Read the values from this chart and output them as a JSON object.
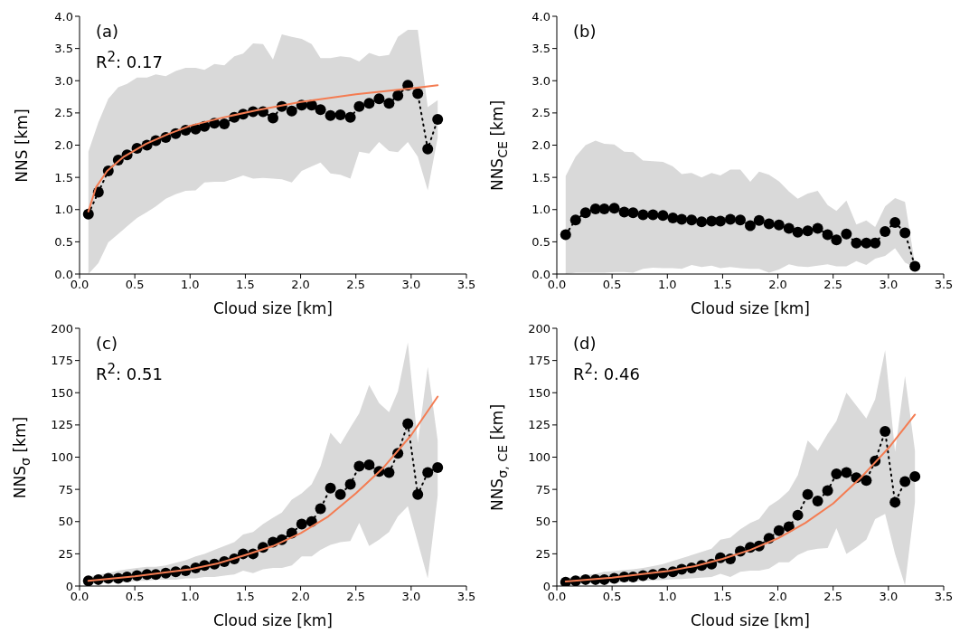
{
  "chart_data": [
    {
      "type": "line",
      "xlabel": "Cloud size [km]",
      "ylabel": "NNS [km]",
      "annotations": [
        "(a)",
        "R$^{2}$: 0.17"
      ],
      "xlim": [
        0,
        3.5
      ],
      "xticks": [
        {
          "value": 0,
          "label": "0.0"
        },
        {
          "value": 0.5,
          "label": "0.5"
        },
        {
          "value": 1,
          "label": "1.0"
        },
        {
          "value": 1.5,
          "label": "1.5"
        },
        {
          "value": 2,
          "label": "2.0"
        },
        {
          "value": 2.5,
          "label": "2.5"
        },
        {
          "value": 3,
          "label": "3.0"
        },
        {
          "value": 3.5,
          "label": "3.5"
        }
      ],
      "ylim": [
        0,
        4
      ],
      "yticks": [
        {
          "value": 0,
          "label": "0.0"
        },
        {
          "value": 0.5,
          "label": "0.5"
        },
        {
          "value": 1,
          "label": "1.0"
        },
        {
          "value": 1.5,
          "label": "1.5"
        },
        {
          "value": 2,
          "label": "2.0"
        },
        {
          "value": 2.5,
          "label": "2.5"
        },
        {
          "value": 3,
          "label": "3.0"
        },
        {
          "value": 3.5,
          "label": "3.5"
        },
        {
          "value": 4,
          "label": "4.0"
        }
      ],
      "x": [
        0.08,
        0.17,
        0.26,
        0.35,
        0.43,
        0.52,
        0.61,
        0.69,
        0.78,
        0.87,
        0.96,
        1.05,
        1.13,
        1.22,
        1.31,
        1.4,
        1.48,
        1.57,
        1.66,
        1.75,
        1.83,
        1.92,
        2.01,
        2.1,
        2.18,
        2.27,
        2.36,
        2.45,
        2.53,
        2.62,
        2.71,
        2.8,
        2.88,
        2.97,
        3.06,
        3.15,
        3.24
      ],
      "series": [
        {
          "color": "#000000",
          "marker": "circle",
          "line_style": "dotted",
          "values": [
            0.93,
            1.27,
            1.6,
            1.77,
            1.85,
            1.95,
            2.0,
            2.07,
            2.12,
            2.18,
            2.23,
            2.25,
            2.29,
            2.34,
            2.33,
            2.43,
            2.48,
            2.52,
            2.52,
            2.42,
            2.6,
            2.53,
            2.62,
            2.62,
            2.55,
            2.46,
            2.47,
            2.43,
            2.6,
            2.65,
            2.72,
            2.65,
            2.77,
            2.93,
            2.8,
            1.94,
            2.4
          ],
          "lower": [
            0.0,
            0.17,
            0.49,
            0.62,
            0.74,
            0.87,
            0.96,
            1.05,
            1.17,
            1.24,
            1.29,
            1.3,
            1.42,
            1.43,
            1.43,
            1.48,
            1.53,
            1.48,
            1.49,
            1.48,
            1.47,
            1.42,
            1.6,
            1.67,
            1.73,
            1.56,
            1.54,
            1.48,
            1.9,
            1.87,
            2.05,
            1.91,
            1.89,
            2.05,
            1.82,
            1.3,
            2.12
          ],
          "upper": [
            1.9,
            2.35,
            2.72,
            2.9,
            2.95,
            3.05,
            3.05,
            3.1,
            3.07,
            3.15,
            3.2,
            3.2,
            3.17,
            3.26,
            3.24,
            3.38,
            3.42,
            3.58,
            3.57,
            3.33,
            3.72,
            3.68,
            3.65,
            3.57,
            3.35,
            3.35,
            3.38,
            3.36,
            3.3,
            3.43,
            3.38,
            3.4,
            3.68,
            3.79,
            3.79,
            2.59,
            2.7
          ]
        },
        {
          "type": "line",
          "color": "#f47c52",
          "marker": "none",
          "line_style": "solid",
          "x": [
            0.08,
            0.15,
            0.25,
            0.4,
            0.6,
            0.8,
            1.0,
            1.3,
            1.6,
            2.0,
            2.5,
            3.0,
            3.24
          ],
          "values": [
            0.97,
            1.35,
            1.6,
            1.82,
            2.02,
            2.17,
            2.3,
            2.43,
            2.54,
            2.67,
            2.79,
            2.88,
            2.93
          ]
        }
      ]
    },
    {
      "type": "line",
      "xlabel": "Cloud size [km]",
      "ylabel": "NNS$_{CE}$ [km]",
      "annotations": [
        "(b)"
      ],
      "xlim": [
        0,
        3.5
      ],
      "xticks": [
        {
          "value": 0,
          "label": "0.0"
        },
        {
          "value": 0.5,
          "label": "0.5"
        },
        {
          "value": 1,
          "label": "1.0"
        },
        {
          "value": 1.5,
          "label": "1.5"
        },
        {
          "value": 2,
          "label": "2.0"
        },
        {
          "value": 2.5,
          "label": "2.5"
        },
        {
          "value": 3,
          "label": "3.0"
        },
        {
          "value": 3.5,
          "label": "3.5"
        }
      ],
      "ylim": [
        0,
        4
      ],
      "yticks": [
        {
          "value": 0,
          "label": "0.0"
        },
        {
          "value": 0.5,
          "label": "0.5"
        },
        {
          "value": 1,
          "label": "1.0"
        },
        {
          "value": 1.5,
          "label": "1.5"
        },
        {
          "value": 2,
          "label": "2.0"
        },
        {
          "value": 2.5,
          "label": "2.5"
        },
        {
          "value": 3,
          "label": "3.0"
        },
        {
          "value": 3.5,
          "label": "3.5"
        },
        {
          "value": 4,
          "label": "4.0"
        }
      ],
      "x": [
        0.08,
        0.17,
        0.26,
        0.35,
        0.43,
        0.52,
        0.61,
        0.69,
        0.78,
        0.87,
        0.96,
        1.05,
        1.13,
        1.22,
        1.31,
        1.4,
        1.48,
        1.57,
        1.66,
        1.75,
        1.83,
        1.92,
        2.01,
        2.1,
        2.18,
        2.27,
        2.36,
        2.45,
        2.53,
        2.62,
        2.71,
        2.8,
        2.88,
        2.97,
        3.06,
        3.15,
        3.24
      ],
      "series": [
        {
          "color": "#000000",
          "marker": "circle",
          "line_style": "dotted",
          "values": [
            0.61,
            0.84,
            0.95,
            1.01,
            1.01,
            1.02,
            0.96,
            0.95,
            0.92,
            0.92,
            0.91,
            0.87,
            0.85,
            0.84,
            0.81,
            0.82,
            0.82,
            0.85,
            0.84,
            0.75,
            0.83,
            0.78,
            0.76,
            0.71,
            0.65,
            0.67,
            0.71,
            0.61,
            0.53,
            0.62,
            0.48,
            0.48,
            0.48,
            0.66,
            0.8,
            0.64,
            0.12
          ],
          "lower": [
            0.0,
            0.02,
            0.02,
            0.02,
            0.02,
            0.03,
            0.03,
            0.02,
            0.08,
            0.1,
            0.09,
            0.09,
            0.08,
            0.14,
            0.11,
            0.13,
            0.09,
            0.11,
            0.09,
            0.08,
            0.08,
            0.02,
            0.07,
            0.15,
            0.12,
            0.11,
            0.13,
            0.15,
            0.12,
            0.12,
            0.2,
            0.14,
            0.24,
            0.28,
            0.4,
            0.18,
            0.1
          ],
          "upper": [
            1.52,
            1.82,
            2.0,
            2.07,
            2.02,
            2.01,
            1.9,
            1.89,
            1.76,
            1.75,
            1.74,
            1.67,
            1.55,
            1.57,
            1.5,
            1.57,
            1.53,
            1.62,
            1.62,
            1.43,
            1.59,
            1.54,
            1.44,
            1.28,
            1.17,
            1.25,
            1.29,
            1.07,
            0.98,
            1.14,
            0.77,
            0.83,
            0.73,
            1.05,
            1.18,
            1.12,
            0.15
          ]
        }
      ]
    },
    {
      "type": "line",
      "xlabel": "Cloud size [km]",
      "ylabel": "NNS$_{σ}$ [km]",
      "annotations": [
        "(c)",
        "R$^{2}$: 0.51"
      ],
      "xlim": [
        0,
        3.5
      ],
      "xticks": [
        {
          "value": 0,
          "label": "0.0"
        },
        {
          "value": 0.5,
          "label": "0.5"
        },
        {
          "value": 1,
          "label": "1.0"
        },
        {
          "value": 1.5,
          "label": "1.5"
        },
        {
          "value": 2,
          "label": "2.0"
        },
        {
          "value": 2.5,
          "label": "2.5"
        },
        {
          "value": 3,
          "label": "3.0"
        },
        {
          "value": 3.5,
          "label": "3.5"
        }
      ],
      "ylim": [
        0,
        200
      ],
      "yticks": [
        0,
        25,
        50,
        75,
        100,
        125,
        150,
        175,
        200
      ],
      "x": [
        0.08,
        0.17,
        0.26,
        0.35,
        0.43,
        0.52,
        0.61,
        0.69,
        0.78,
        0.87,
        0.96,
        1.05,
        1.13,
        1.22,
        1.31,
        1.4,
        1.48,
        1.57,
        1.66,
        1.75,
        1.83,
        1.92,
        2.01,
        2.1,
        2.18,
        2.27,
        2.36,
        2.45,
        2.53,
        2.62,
        2.71,
        2.8,
        2.88,
        2.97,
        3.06,
        3.15,
        3.24
      ],
      "series": [
        {
          "color": "#000000",
          "marker": "circle",
          "line_style": "dotted",
          "values": [
            4,
            5,
            6,
            6,
            7,
            8,
            9,
            9,
            10,
            11,
            12,
            14,
            16,
            17,
            19,
            21,
            25,
            25,
            30,
            34,
            36,
            41,
            48,
            50,
            60,
            76,
            71,
            79,
            93,
            94,
            89,
            88,
            103,
            126,
            71,
            88,
            92
          ],
          "lower": [
            2,
            2,
            3,
            3,
            3,
            4,
            4,
            5,
            5,
            5,
            6,
            6,
            7,
            7,
            8,
            9,
            12,
            10,
            13,
            14,
            14,
            16,
            23,
            23,
            28,
            32,
            34,
            35,
            49,
            31,
            36,
            42,
            54,
            62,
            34,
            6,
            70
          ],
          "upper": [
            7,
            9,
            10,
            12,
            13,
            14,
            15,
            15,
            16,
            18,
            20,
            23,
            25,
            28,
            31,
            34,
            40,
            42,
            48,
            53,
            57,
            67,
            72,
            79,
            93,
            119,
            110,
            123,
            134,
            156,
            142,
            135,
            151,
            189,
            111,
            170,
            113
          ]
        },
        {
          "type": "line",
          "color": "#f47c52",
          "marker": "none",
          "line_style": "solid",
          "x": [
            0.08,
            0.5,
            1.0,
            1.25,
            1.5,
            1.75,
            2.0,
            2.25,
            2.5,
            2.75,
            3.0,
            3.24
          ],
          "values": [
            4,
            7.5,
            13,
            17.5,
            24,
            31,
            41,
            54,
            72,
            92,
            117,
            147
          ]
        }
      ]
    },
    {
      "type": "line",
      "xlabel": "Cloud size [km]",
      "ylabel": "NNS$_{σ, CE}$ [km]",
      "annotations": [
        "(d)",
        "R$^{2}$: 0.46"
      ],
      "xlim": [
        0,
        3.5
      ],
      "xticks": [
        {
          "value": 0,
          "label": "0.0"
        },
        {
          "value": 0.5,
          "label": "0.5"
        },
        {
          "value": 1,
          "label": "1.0"
        },
        {
          "value": 1.5,
          "label": "1.5"
        },
        {
          "value": 2,
          "label": "2.0"
        },
        {
          "value": 2.5,
          "label": "2.5"
        },
        {
          "value": 3,
          "label": "3.0"
        },
        {
          "value": 3.5,
          "label": "3.5"
        }
      ],
      "ylim": [
        0,
        200
      ],
      "yticks": [
        0,
        25,
        50,
        75,
        100,
        125,
        150,
        175,
        200
      ],
      "x": [
        0.08,
        0.17,
        0.26,
        0.35,
        0.43,
        0.52,
        0.61,
        0.69,
        0.78,
        0.87,
        0.96,
        1.05,
        1.13,
        1.22,
        1.31,
        1.4,
        1.48,
        1.57,
        1.66,
        1.75,
        1.83,
        1.92,
        2.01,
        2.1,
        2.18,
        2.27,
        2.36,
        2.45,
        2.53,
        2.62,
        2.71,
        2.8,
        2.88,
        2.97,
        3.06,
        3.15,
        3.24
      ],
      "series": [
        {
          "color": "#000000",
          "marker": "circle",
          "line_style": "dotted",
          "values": [
            3,
            4,
            5,
            5,
            5,
            6,
            7,
            7,
            8,
            9,
            10,
            11,
            13,
            14,
            16,
            17,
            22,
            21,
            27,
            30,
            31,
            37,
            43,
            46,
            55,
            71,
            66,
            74,
            87,
            88,
            84,
            82,
            97,
            120,
            65,
            81,
            85
          ],
          "lower": [
            1.5,
            1.8,
            2,
            2.3,
            2.5,
            2.8,
            3.2,
            3.5,
            4,
            4.3,
            4.8,
            5.2,
            5.5,
            6,
            6.5,
            7,
            9.5,
            7,
            11,
            12,
            12,
            13.5,
            18.5,
            18.5,
            24,
            27.5,
            29,
            29.5,
            45,
            25,
            30,
            36,
            52,
            56,
            25,
            0.5,
            65
          ],
          "upper": [
            6,
            7.5,
            8.5,
            9.5,
            11,
            11.5,
            12.5,
            13,
            14,
            15.5,
            17,
            19.5,
            21.5,
            24,
            26.5,
            29,
            36,
            37.5,
            44,
            49,
            52,
            62,
            67,
            74,
            86,
            113,
            105,
            118,
            128,
            150,
            140,
            130,
            145,
            183,
            104,
            163,
            105
          ]
        },
        {
          "type": "line",
          "color": "#f47c52",
          "marker": "none",
          "line_style": "solid",
          "x": [
            0.08,
            0.5,
            1.0,
            1.25,
            1.5,
            1.75,
            2.0,
            2.25,
            2.5,
            2.75,
            3.0,
            3.24
          ],
          "values": [
            3.5,
            6.5,
            11.5,
            15.5,
            21,
            28,
            37,
            49,
            64,
            84,
            107,
            133
          ]
        }
      ]
    }
  ]
}
